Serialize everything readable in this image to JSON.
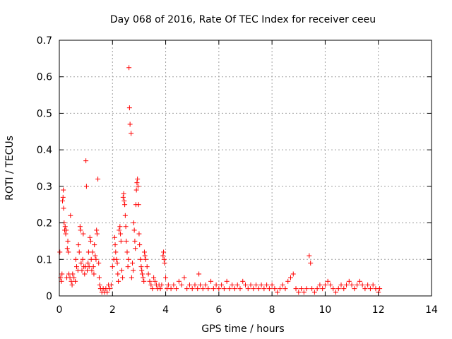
{
  "chart_data": {
    "type": "scatter",
    "title": "Day 068 of 2016, Rate Of TEC Index for receiver ceeu",
    "xlabel": "GPS time / hours",
    "ylabel": "ROTI / TECUs",
    "xlim": [
      0,
      14
    ],
    "ylim": [
      0,
      0.7
    ],
    "xticks": [
      0,
      2,
      4,
      6,
      8,
      10,
      12,
      14
    ],
    "xtick_labels": [
      "0",
      "2",
      "4",
      "6",
      "8",
      "10",
      "12",
      "14"
    ],
    "yticks": [
      0,
      0.1,
      0.2,
      0.3,
      0.4,
      0.5,
      0.6,
      0.7
    ],
    "ytick_labels": [
      "0",
      "0.1",
      "0.2",
      "0.3",
      "0.4",
      "0.5",
      "0.6",
      "0.7"
    ],
    "grid": true,
    "marker": "+",
    "color": "#ff0000",
    "series": [
      {
        "name": "ROTI",
        "points": [
          [
            0.02,
            0.12
          ],
          [
            0.05,
            0.05
          ],
          [
            0.08,
            0.04
          ],
          [
            0.1,
            0.06
          ],
          [
            0.12,
            0.26
          ],
          [
            0.14,
            0.27
          ],
          [
            0.15,
            0.29
          ],
          [
            0.16,
            0.24
          ],
          [
            0.18,
            0.2
          ],
          [
            0.2,
            0.18
          ],
          [
            0.22,
            0.19
          ],
          [
            0.24,
            0.17
          ],
          [
            0.26,
            0.18
          ],
          [
            0.28,
            0.05
          ],
          [
            0.3,
            0.13
          ],
          [
            0.32,
            0.15
          ],
          [
            0.34,
            0.12
          ],
          [
            0.36,
            0.06
          ],
          [
            0.4,
            0.05
          ],
          [
            0.42,
            0.22
          ],
          [
            0.45,
            0.04
          ],
          [
            0.48,
            0.03
          ],
          [
            0.5,
            0.06
          ],
          [
            0.55,
            0.05
          ],
          [
            0.6,
            0.04
          ],
          [
            0.62,
            0.1
          ],
          [
            0.65,
            0.08
          ],
          [
            0.7,
            0.07
          ],
          [
            0.72,
            0.14
          ],
          [
            0.75,
            0.12
          ],
          [
            0.78,
            0.19
          ],
          [
            0.8,
            0.18
          ],
          [
            0.82,
            0.09
          ],
          [
            0.85,
            0.07
          ],
          [
            0.88,
            0.1
          ],
          [
            0.9,
            0.17
          ],
          [
            0.92,
            0.08
          ],
          [
            0.95,
            0.06
          ],
          [
            0.98,
            0.08
          ],
          [
            1.0,
            0.37
          ],
          [
            1.02,
            0.3
          ],
          [
            1.05,
            0.07
          ],
          [
            1.08,
            0.09
          ],
          [
            1.1,
            0.12
          ],
          [
            1.12,
            0.08
          ],
          [
            1.15,
            0.16
          ],
          [
            1.18,
            0.15
          ],
          [
            1.2,
            0.1
          ],
          [
            1.22,
            0.07
          ],
          [
            1.25,
            0.12
          ],
          [
            1.28,
            0.08
          ],
          [
            1.3,
            0.06
          ],
          [
            1.32,
            0.14
          ],
          [
            1.35,
            0.11
          ],
          [
            1.38,
            0.1
          ],
          [
            1.4,
            0.18
          ],
          [
            1.42,
            0.17
          ],
          [
            1.45,
            0.32
          ],
          [
            1.48,
            0.09
          ],
          [
            1.5,
            0.05
          ],
          [
            1.52,
            0.03
          ],
          [
            1.55,
            0.02
          ],
          [
            1.6,
            0.01
          ],
          [
            1.65,
            0.02
          ],
          [
            1.7,
            0.01
          ],
          [
            1.75,
            0.02
          ],
          [
            1.8,
            0.01
          ],
          [
            1.85,
            0.03
          ],
          [
            1.9,
            0.02
          ],
          [
            1.95,
            0.03
          ],
          [
            2.0,
            0.08
          ],
          [
            2.05,
            0.1
          ],
          [
            2.08,
            0.16
          ],
          [
            2.1,
            0.14
          ],
          [
            2.12,
            0.12
          ],
          [
            2.15,
            0.1
          ],
          [
            2.18,
            0.09
          ],
          [
            2.2,
            0.06
          ],
          [
            2.22,
            0.04
          ],
          [
            2.25,
            0.18
          ],
          [
            2.28,
            0.19
          ],
          [
            2.3,
            0.17
          ],
          [
            2.32,
            0.15
          ],
          [
            2.35,
            0.07
          ],
          [
            2.38,
            0.05
          ],
          [
            2.4,
            0.27
          ],
          [
            2.42,
            0.28
          ],
          [
            2.44,
            0.26
          ],
          [
            2.46,
            0.25
          ],
          [
            2.48,
            0.22
          ],
          [
            2.5,
            0.19
          ],
          [
            2.52,
            0.15
          ],
          [
            2.55,
            0.12
          ],
          [
            2.58,
            0.08
          ],
          [
            2.6,
            0.1
          ],
          [
            2.62,
            0.625
          ],
          [
            2.64,
            0.515
          ],
          [
            2.66,
            0.47
          ],
          [
            2.7,
            0.445
          ],
          [
            2.72,
            0.05
          ],
          [
            2.75,
            0.09
          ],
          [
            2.78,
            0.07
          ],
          [
            2.8,
            0.2
          ],
          [
            2.82,
            0.18
          ],
          [
            2.84,
            0.15
          ],
          [
            2.86,
            0.13
          ],
          [
            2.88,
            0.25
          ],
          [
            2.9,
            0.29
          ],
          [
            2.92,
            0.31
          ],
          [
            2.94,
            0.32
          ],
          [
            2.96,
            0.3
          ],
          [
            2.98,
            0.25
          ],
          [
            3.0,
            0.17
          ],
          [
            3.02,
            0.14
          ],
          [
            3.05,
            0.1
          ],
          [
            3.08,
            0.08
          ],
          [
            3.1,
            0.07
          ],
          [
            3.12,
            0.06
          ],
          [
            3.15,
            0.05
          ],
          [
            3.18,
            0.04
          ],
          [
            3.2,
            0.12
          ],
          [
            3.22,
            0.11
          ],
          [
            3.25,
            0.1
          ],
          [
            3.3,
            0.08
          ],
          [
            3.35,
            0.06
          ],
          [
            3.4,
            0.04
          ],
          [
            3.45,
            0.03
          ],
          [
            3.5,
            0.02
          ],
          [
            3.55,
            0.05
          ],
          [
            3.6,
            0.04
          ],
          [
            3.65,
            0.03
          ],
          [
            3.7,
            0.02
          ],
          [
            3.75,
            0.03
          ],
          [
            3.8,
            0.02
          ],
          [
            3.85,
            0.03
          ],
          [
            3.9,
            0.11
          ],
          [
            3.92,
            0.12
          ],
          [
            3.94,
            0.1
          ],
          [
            3.96,
            0.09
          ],
          [
            4.0,
            0.05
          ],
          [
            4.05,
            0.02
          ],
          [
            4.1,
            0.03
          ],
          [
            4.2,
            0.02
          ],
          [
            4.3,
            0.03
          ],
          [
            4.4,
            0.02
          ],
          [
            4.5,
            0.04
          ],
          [
            4.6,
            0.03
          ],
          [
            4.7,
            0.05
          ],
          [
            4.8,
            0.02
          ],
          [
            4.9,
            0.03
          ],
          [
            5.0,
            0.02
          ],
          [
            5.1,
            0.03
          ],
          [
            5.2,
            0.02
          ],
          [
            5.25,
            0.06
          ],
          [
            5.3,
            0.03
          ],
          [
            5.4,
            0.02
          ],
          [
            5.5,
            0.03
          ],
          [
            5.6,
            0.02
          ],
          [
            5.7,
            0.04
          ],
          [
            5.8,
            0.02
          ],
          [
            5.9,
            0.03
          ],
          [
            6.0,
            0.02
          ],
          [
            6.1,
            0.03
          ],
          [
            6.2,
            0.02
          ],
          [
            6.3,
            0.04
          ],
          [
            6.4,
            0.02
          ],
          [
            6.5,
            0.03
          ],
          [
            6.6,
            0.02
          ],
          [
            6.7,
            0.03
          ],
          [
            6.8,
            0.02
          ],
          [
            6.9,
            0.04
          ],
          [
            7.0,
            0.03
          ],
          [
            7.1,
            0.02
          ],
          [
            7.2,
            0.03
          ],
          [
            7.3,
            0.02
          ],
          [
            7.4,
            0.03
          ],
          [
            7.5,
            0.02
          ],
          [
            7.6,
            0.03
          ],
          [
            7.7,
            0.02
          ],
          [
            7.8,
            0.03
          ],
          [
            7.9,
            0.02
          ],
          [
            8.0,
            0.03
          ],
          [
            8.1,
            0.02
          ],
          [
            8.2,
            0.01
          ],
          [
            8.3,
            0.02
          ],
          [
            8.4,
            0.03
          ],
          [
            8.5,
            0.02
          ],
          [
            8.6,
            0.04
          ],
          [
            8.7,
            0.05
          ],
          [
            8.8,
            0.06
          ],
          [
            8.9,
            0.02
          ],
          [
            9.0,
            0.01
          ],
          [
            9.1,
            0.02
          ],
          [
            9.2,
            0.01
          ],
          [
            9.3,
            0.02
          ],
          [
            9.4,
            0.11
          ],
          [
            9.45,
            0.09
          ],
          [
            9.5,
            0.02
          ],
          [
            9.6,
            0.01
          ],
          [
            9.7,
            0.02
          ],
          [
            9.8,
            0.03
          ],
          [
            9.9,
            0.02
          ],
          [
            10.0,
            0.03
          ],
          [
            10.1,
            0.04
          ],
          [
            10.2,
            0.03
          ],
          [
            10.3,
            0.02
          ],
          [
            10.4,
            0.01
          ],
          [
            10.5,
            0.02
          ],
          [
            10.6,
            0.03
          ],
          [
            10.7,
            0.02
          ],
          [
            10.8,
            0.03
          ],
          [
            10.9,
            0.04
          ],
          [
            11.0,
            0.03
          ],
          [
            11.1,
            0.02
          ],
          [
            11.2,
            0.03
          ],
          [
            11.3,
            0.04
          ],
          [
            11.4,
            0.03
          ],
          [
            11.5,
            0.02
          ],
          [
            11.6,
            0.03
          ],
          [
            11.7,
            0.02
          ],
          [
            11.8,
            0.03
          ],
          [
            11.9,
            0.02
          ],
          [
            12.0,
            0.01
          ],
          [
            12.05,
            0.02
          ]
        ]
      }
    ]
  }
}
